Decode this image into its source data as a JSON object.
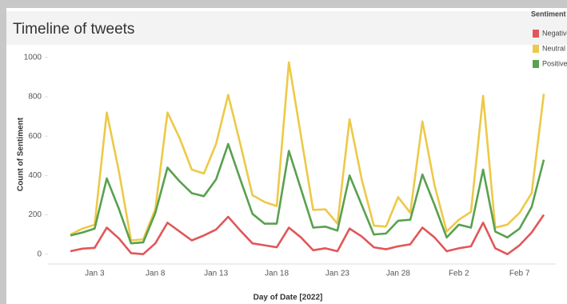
{
  "chart_data": {
    "type": "line",
    "title": "Timeline of tweets",
    "x_label": "Day of Date [2022]",
    "y_label": "Count of Sentiment",
    "legend_title": "Sentiment",
    "legend": "top-right",
    "grid": false,
    "categories": [
      null,
      null,
      "Jan 3",
      null,
      null,
      null,
      null,
      "Jan 8",
      null,
      null,
      null,
      null,
      "Jan 13",
      null,
      null,
      null,
      null,
      "Jan 18",
      null,
      null,
      null,
      null,
      "Jan 23",
      null,
      null,
      null,
      null,
      "Jan 28",
      null,
      null,
      null,
      null,
      "Feb 2",
      null,
      null,
      null,
      null,
      "Feb 7",
      null,
      null
    ],
    "ylim": [
      -50,
      1040
    ],
    "yticks": [
      0,
      200,
      400,
      600,
      800,
      1000
    ],
    "series": [
      {
        "name": "Negative",
        "color": "#e15759",
        "values": [
          15,
          28,
          32,
          135,
          80,
          5,
          0,
          55,
          160,
          115,
          70,
          95,
          125,
          190,
          120,
          55,
          45,
          35,
          135,
          85,
          20,
          30,
          15,
          130,
          90,
          35,
          25,
          40,
          50,
          135,
          85,
          15,
          30,
          40,
          160,
          30,
          0,
          45,
          110,
          200
        ]
      },
      {
        "name": "Neutral",
        "color": "#edc948",
        "values": [
          100,
          130,
          150,
          720,
          420,
          70,
          75,
          230,
          720,
          590,
          430,
          410,
          560,
          810,
          560,
          300,
          265,
          245,
          975,
          600,
          225,
          228,
          155,
          686,
          380,
          145,
          140,
          290,
          210,
          675,
          350,
          115,
          175,
          215,
          805,
          135,
          150,
          210,
          310,
          815
        ]
      },
      {
        "name": "Positive",
        "color": "#59a14f",
        "values": [
          95,
          110,
          130,
          385,
          230,
          55,
          60,
          210,
          440,
          370,
          310,
          295,
          380,
          560,
          380,
          205,
          155,
          155,
          525,
          330,
          135,
          140,
          120,
          400,
          250,
          100,
          105,
          170,
          175,
          405,
          250,
          85,
          150,
          135,
          430,
          115,
          85,
          130,
          240,
          480
        ]
      }
    ]
  }
}
